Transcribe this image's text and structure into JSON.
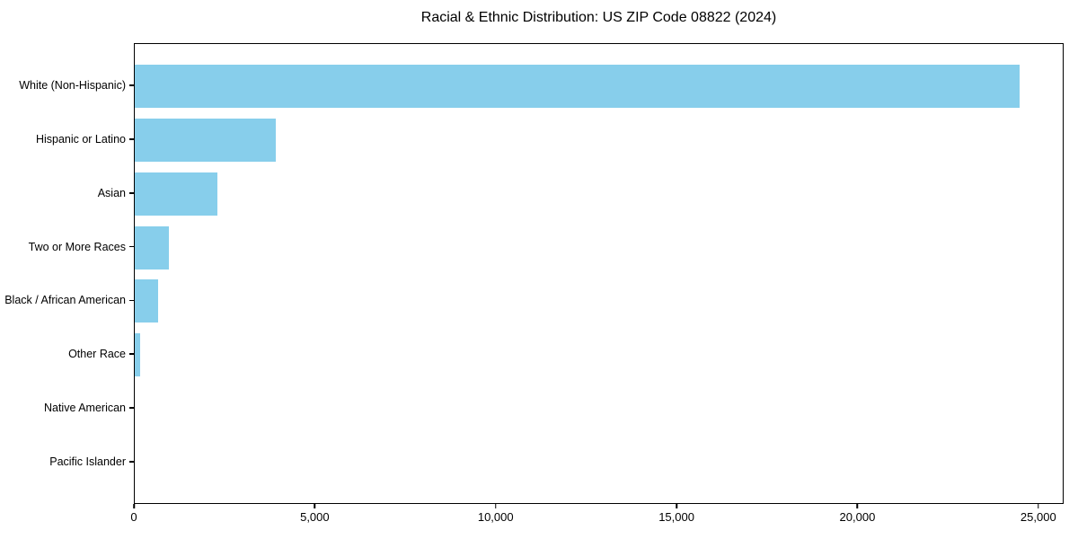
{
  "chart_data": {
    "type": "bar",
    "orientation": "horizontal",
    "title": "Racial & Ethnic Distribution: US ZIP Code 08822 (2024)",
    "categories": [
      "White (Non-Hispanic)",
      "Hispanic or Latino",
      "Asian",
      "Two or More Races",
      "Black / African American",
      "Other Race",
      "Native American",
      "Pacific Islander"
    ],
    "values": [
      24500,
      3900,
      2300,
      950,
      650,
      140,
      0,
      0
    ],
    "xlabel": "",
    "ylabel": "",
    "xlim": [
      0,
      25700
    ],
    "xticks": {
      "values": [
        0,
        5000,
        10000,
        15000,
        20000,
        25000
      ],
      "labels": [
        "0",
        "5,000",
        "10,000",
        "15,000",
        "20,000",
        "25,000"
      ]
    },
    "bar_color": "#87CEEB",
    "grid": false,
    "legend_position": "none"
  }
}
